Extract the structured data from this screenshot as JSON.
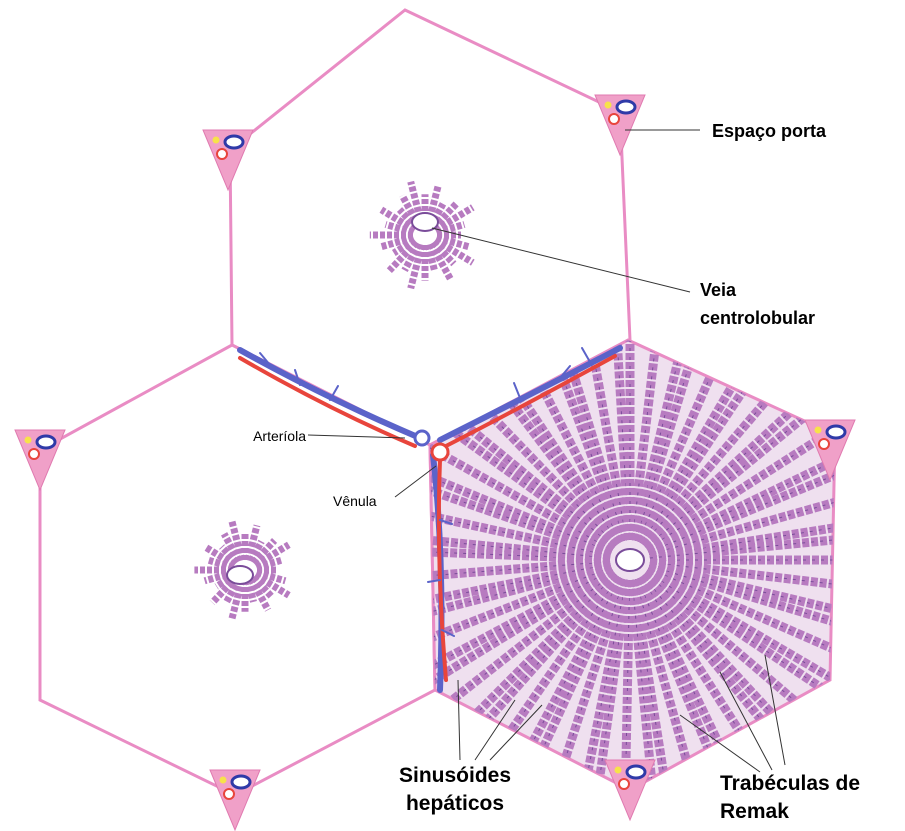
{
  "labels": [
    {
      "lines": [
        "Espaço porta"
      ]
    },
    {
      "lines": [
        "Veia",
        "centrolobular"
      ]
    },
    {
      "lines": [
        "Arteríola"
      ]
    },
    {
      "lines": [
        "Vênula"
      ]
    },
    {
      "lines": [
        "Sinusóides",
        "hepáticos"
      ]
    },
    {
      "lines": [
        "Trabéculas de",
        "Remak"
      ]
    }
  ]
}
